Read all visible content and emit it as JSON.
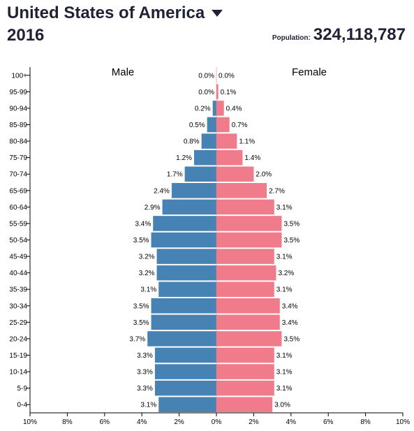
{
  "header": {
    "country": "United States of America",
    "year": "2016",
    "population_label": "Population:",
    "population_value": "324,118,787"
  },
  "colors": {
    "male": "#4682b4",
    "female": "#f07b8a"
  },
  "chart_data": {
    "type": "bar",
    "orientation": "horizontal",
    "categories": [
      "100+",
      "95-99",
      "90-94",
      "85-89",
      "80-84",
      "75-79",
      "70-74",
      "65-69",
      "60-64",
      "55-59",
      "50-54",
      "45-49",
      "40-44",
      "35-39",
      "30-34",
      "25-29",
      "20-24",
      "15-19",
      "10-14",
      "5-9",
      "0-4"
    ],
    "series": [
      {
        "name": "Male",
        "values": [
          0.0,
          0.0,
          0.2,
          0.5,
          0.8,
          1.2,
          1.7,
          2.4,
          2.9,
          3.4,
          3.5,
          3.2,
          3.2,
          3.1,
          3.5,
          3.5,
          3.7,
          3.3,
          3.3,
          3.3,
          3.1
        ]
      },
      {
        "name": "Female",
        "values": [
          0.0,
          0.1,
          0.4,
          0.7,
          1.1,
          1.4,
          2.0,
          2.7,
          3.1,
          3.5,
          3.5,
          3.1,
          3.2,
          3.1,
          3.4,
          3.4,
          3.5,
          3.1,
          3.1,
          3.1,
          3.0
        ]
      }
    ],
    "x_ticks": [
      "10%",
      "8%",
      "6%",
      "4%",
      "2%",
      "0%",
      "2%",
      "4%",
      "6%",
      "8%",
      "10%"
    ],
    "xlim": [
      -10,
      10
    ],
    "value_suffix": "%",
    "grid": false
  }
}
